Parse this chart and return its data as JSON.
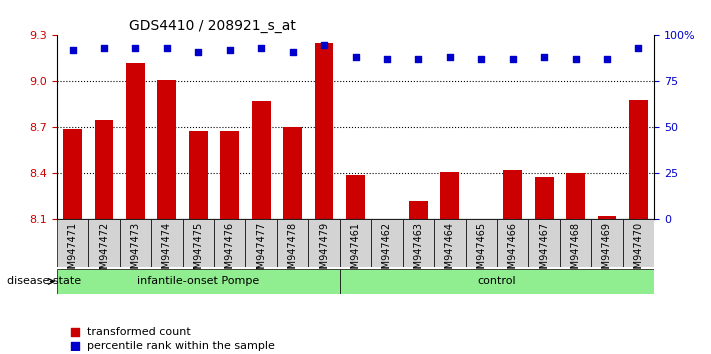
{
  "title": "GDS4410 / 208921_s_at",
  "samples": [
    "GSM947471",
    "GSM947472",
    "GSM947473",
    "GSM947474",
    "GSM947475",
    "GSM947476",
    "GSM947477",
    "GSM947478",
    "GSM947479",
    "GSM947461",
    "GSM947462",
    "GSM947463",
    "GSM947464",
    "GSM947465",
    "GSM947466",
    "GSM947467",
    "GSM947468",
    "GSM947469",
    "GSM947470"
  ],
  "bar_values": [
    8.69,
    8.75,
    9.12,
    9.01,
    8.68,
    8.68,
    8.87,
    8.7,
    9.25,
    8.39,
    8.1,
    8.22,
    8.41,
    8.1,
    8.42,
    8.38,
    8.4,
    8.12,
    8.88
  ],
  "percentile_values": [
    92,
    93,
    93,
    93,
    91,
    92,
    93,
    91,
    95,
    88,
    87,
    87,
    88,
    87,
    87,
    88,
    87,
    87,
    93
  ],
  "groups": {
    "infantile-onset Pompe": [
      0,
      8
    ],
    "control": [
      9,
      18
    ]
  },
  "group_colors": {
    "infantile-onset Pompe": "#90EE90",
    "control": "#90EE90"
  },
  "bar_color": "#cc0000",
  "percentile_color": "#0000cc",
  "ylim_left": [
    8.1,
    9.3
  ],
  "ylim_right": [
    0,
    100
  ],
  "yticks_left": [
    8.1,
    8.4,
    8.7,
    9.0,
    9.3
  ],
  "yticks_right": [
    0,
    25,
    50,
    75,
    100
  ],
  "grid_values": [
    9.0,
    8.7,
    8.4
  ],
  "legend_items": [
    {
      "label": "transformed count",
      "color": "#cc0000",
      "marker": "s"
    },
    {
      "label": "percentile rank within the sample",
      "color": "#0000cc",
      "marker": "s"
    }
  ],
  "disease_state_label": "disease state",
  "background_color": "#ffffff",
  "tick_bg_color": "#d3d3d3"
}
